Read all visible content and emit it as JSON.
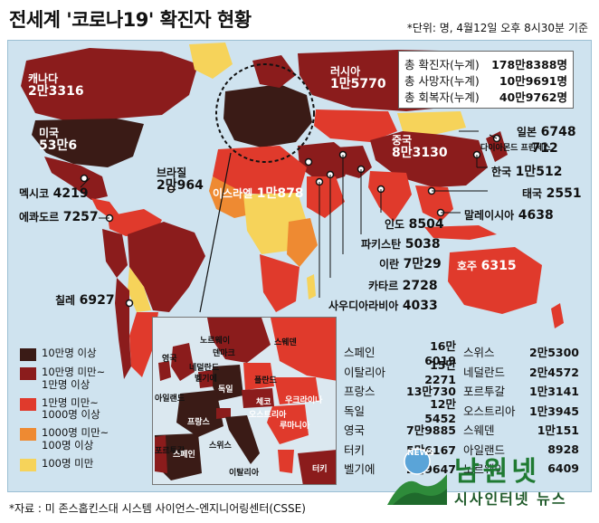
{
  "header": {
    "title": "전세계 '코로나19' 확진자 현황",
    "unit_note": "*단위: 명, 4월12일 오후 8시30분 기준"
  },
  "colors": {
    "ocean": "#cfe3ef",
    "band_100k_plus": "#3a1b16",
    "band_10k_100k": "#8b1c1c",
    "band_1k_10k": "#e03a2c",
    "band_100_1k": "#ee8a32",
    "band_under_100": "#f6d35a"
  },
  "totals": [
    {
      "label": "총 확진자(누계)",
      "value": "178만8388명"
    },
    {
      "label": "총 사망자(누계)",
      "value": "10만9691명"
    },
    {
      "label": "총 회복자(누계)",
      "value": "40만9762명"
    }
  ],
  "countries": [
    {
      "name": "캐나다",
      "value": "2만3316"
    },
    {
      "name": "미국",
      "value": "53만6"
    },
    {
      "name": "러시아",
      "value": "1만5770"
    },
    {
      "name": "중국",
      "value": "8만3130"
    },
    {
      "name": "브라질",
      "value": "2만964"
    },
    {
      "name": "멕시코",
      "value": "4219"
    },
    {
      "name": "에콰도르",
      "value": "7257"
    },
    {
      "name": "칠레",
      "value": "6927"
    },
    {
      "name": "이스라엘",
      "value": "1만878"
    },
    {
      "name": "일본",
      "value": "6748"
    },
    {
      "name": "다이아몬드 프린세스",
      "value": "712"
    },
    {
      "name": "한국",
      "value": "1만512"
    },
    {
      "name": "태국",
      "value": "2551"
    },
    {
      "name": "말레이시아",
      "value": "4638"
    },
    {
      "name": "인도",
      "value": "8504"
    },
    {
      "name": "파키스탄",
      "value": "5038"
    },
    {
      "name": "이란",
      "value": "7만29"
    },
    {
      "name": "카타르",
      "value": "2728"
    },
    {
      "name": "사우디아라비아",
      "value": "4033"
    },
    {
      "name": "호주",
      "value": "6315"
    }
  ],
  "legend": [
    {
      "label": "10만명 이상",
      "color": "#3a1b16"
    },
    {
      "label": "10만명 미만~ 1만명 이상",
      "color": "#8b1c1c"
    },
    {
      "label": "1만명 미만~ 1000명 이상",
      "color": "#e03a2c"
    },
    {
      "label": "1000명 미만~ 100명 이상",
      "color": "#ee8a32"
    },
    {
      "label": "100명 미만",
      "color": "#f6d35a"
    }
  ],
  "europe_labels": [
    "노르웨이",
    "스웨덴",
    "영국",
    "덴마크",
    "네덜란드",
    "벨기에",
    "아일랜드",
    "독일",
    "폴란드",
    "체코",
    "우크라이나",
    "오스트리아",
    "프랑스",
    "루마니아",
    "스위스",
    "포르투갈",
    "스페인",
    "이탈리아",
    "터키"
  ],
  "europe_table": {
    "left": [
      {
        "name": "스페인",
        "value": "16만6019"
      },
      {
        "name": "이탈리아",
        "value": "15만2271"
      },
      {
        "name": "프랑스",
        "value": "13만730"
      },
      {
        "name": "독일",
        "value": "12만5452"
      },
      {
        "name": "영국",
        "value": "7만9885"
      },
      {
        "name": "터키",
        "value": "5만6167"
      },
      {
        "name": "벨기에",
        "value": "2만9647"
      }
    ],
    "right": [
      {
        "name": "스위스",
        "value": "2만5300"
      },
      {
        "name": "네덜란드",
        "value": "2만4572"
      },
      {
        "name": "포르투갈",
        "value": "1만3141"
      },
      {
        "name": "오스트리아",
        "value": "1만3945"
      },
      {
        "name": "스웨덴",
        "value": "1만151"
      },
      {
        "name": "아일랜드",
        "value": "8928"
      },
      {
        "name": "노르웨이",
        "value": "6409"
      }
    ]
  },
  "source": "*자료 : 미 존스홉킨스대 시스템 사이언스-엔지니어링센터(CSSE)",
  "watermark": {
    "main": "남원넷",
    "sub": "시사인터넷 뉴스",
    "seal": "NEWS"
  }
}
